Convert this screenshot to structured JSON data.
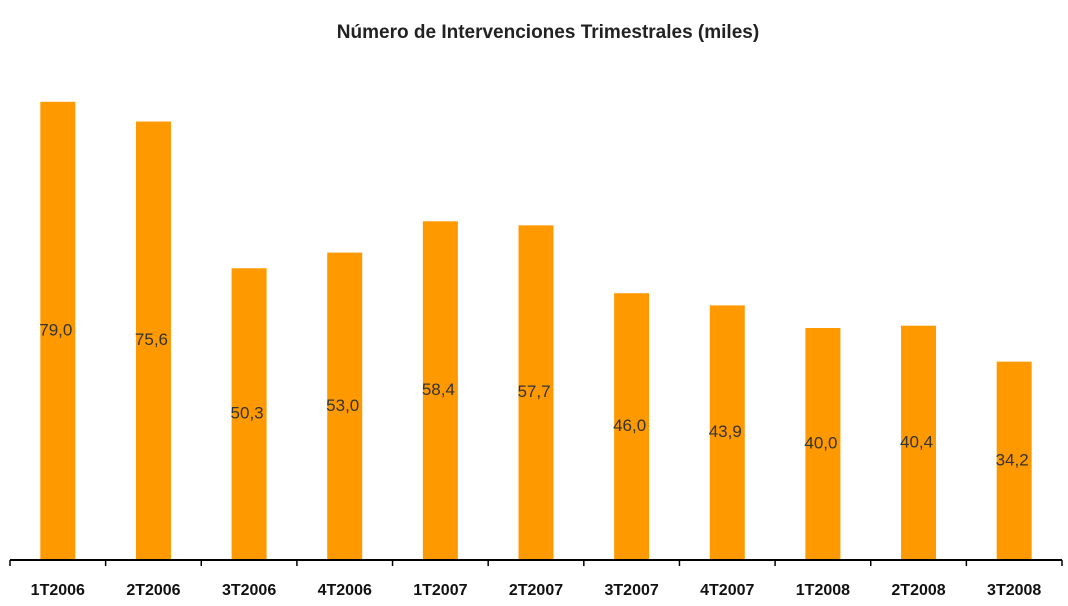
{
  "chart_data": {
    "type": "bar",
    "title": "Número de Intervenciones  Trimestrales  (miles)",
    "categories": [
      "1T2006",
      "2T2006",
      "3T2006",
      "4T2006",
      "1T2007",
      "2T2007",
      "3T2007",
      "4T2007",
      "1T2008",
      "2T2008",
      "3T2008"
    ],
    "values": [
      79.0,
      75.6,
      50.3,
      53.0,
      58.4,
      57.7,
      46.0,
      43.9,
      40.0,
      40.4,
      34.2
    ],
    "value_labels": [
      "79,0",
      "75,6",
      "50,3",
      "53,0",
      "58,4",
      "57,7",
      "46,0",
      "43,9",
      "40,0",
      "40,4",
      "34,2"
    ],
    "color": "#ff9900",
    "ylim": [
      0,
      80
    ]
  }
}
